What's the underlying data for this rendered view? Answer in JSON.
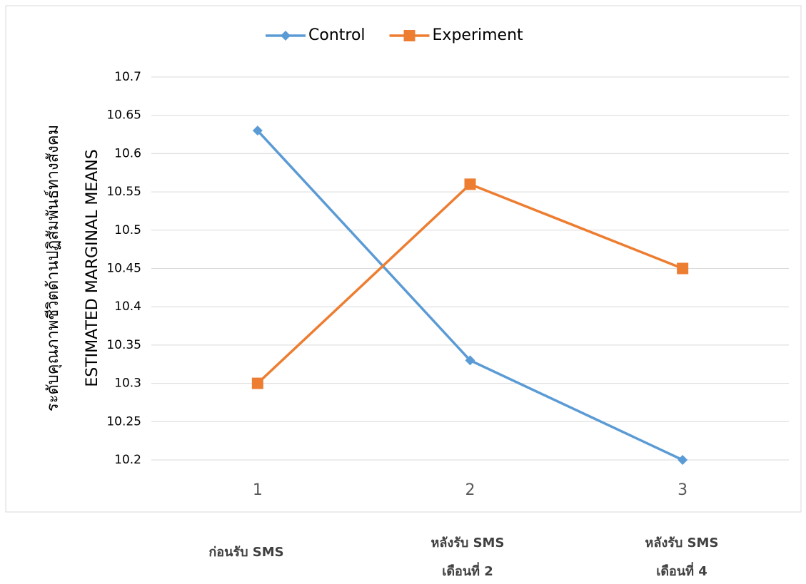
{
  "chart_data": {
    "type": "line",
    "ylabel": [
      "ระดับคุณภาพชีวิตด้านปฏิสัมพันธ์ทางสังคม",
      "ESTIMATED MARGINAL MEANS"
    ],
    "categories": [
      "1",
      "2",
      "3"
    ],
    "series": [
      {
        "name": "Control",
        "color": "#5b9bd5",
        "marker": "diamond",
        "values": [
          10.63,
          10.33,
          10.2
        ]
      },
      {
        "name": "Experiment",
        "color": "#ed7d31",
        "marker": "square",
        "values": [
          10.3,
          10.56,
          10.45
        ]
      }
    ],
    "ylim": [
      10.2,
      10.7
    ],
    "yticks": [
      10.2,
      10.25,
      10.3,
      10.35,
      10.4,
      10.45,
      10.5,
      10.55,
      10.6,
      10.65,
      10.7
    ],
    "grid": true,
    "legend": "top",
    "annotations": [
      [
        "ก่อนรับ SMS"
      ],
      [
        "หลังรับ SMS",
        "เดือนที่ 2"
      ],
      [
        "หลังรับ SMS",
        "เดือนที่ 4"
      ]
    ]
  }
}
